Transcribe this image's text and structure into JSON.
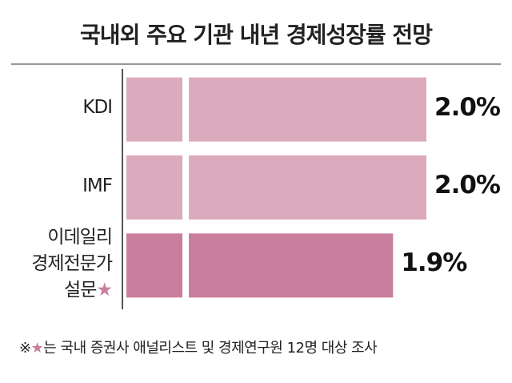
{
  "chart_data": {
    "type": "bar",
    "orientation": "horizontal",
    "title": "국내외 주요 기관 내년 경제성장률 전망",
    "categories": [
      "KDI",
      "IMF",
      "이데일리\n경제전문가\n설문"
    ],
    "category_marked": [
      false,
      false,
      true
    ],
    "values": [
      2.0,
      2.0,
      1.9
    ],
    "value_labels": [
      "2.0%",
      "2.0%",
      "1.9%"
    ],
    "colors": [
      "#dcaabd",
      "#dcaabd",
      "#c97e9d"
    ],
    "xlim": [
      1.1,
      2.0
    ],
    "footnote": {
      "symbol": "※",
      "marker": "★",
      "text": "는 국내 증권사 애널리스트 및 경제연구원 12명 대상 조사"
    }
  }
}
